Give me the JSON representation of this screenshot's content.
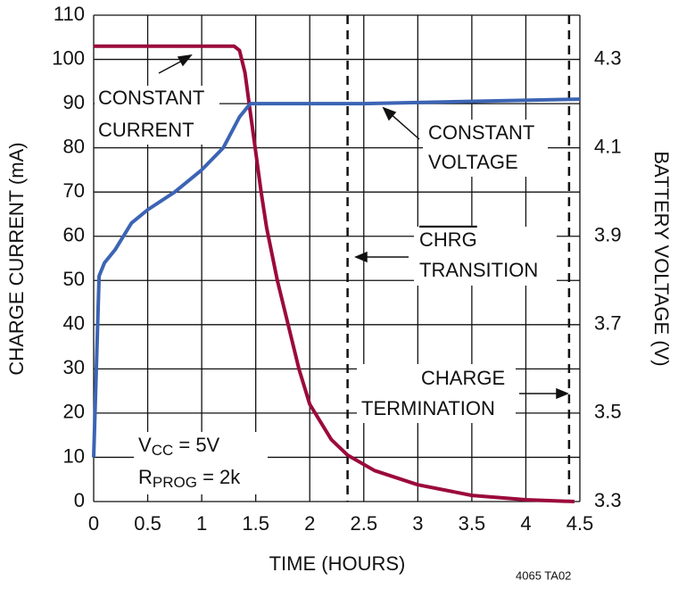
{
  "chart_data": {
    "type": "line",
    "xlabel": "TIME (HOURS)",
    "ylabel": "CHARGE CURRENT (mA)",
    "y2label": "BATTERY VOLTAGE (V)",
    "xlim": [
      0,
      4.5
    ],
    "xticks": [
      0,
      0.5,
      1,
      1.5,
      2,
      2.5,
      3,
      3.5,
      4,
      4.5
    ],
    "ylim": [
      0,
      110
    ],
    "yticks": [
      0,
      10,
      20,
      30,
      40,
      50,
      60,
      70,
      80,
      90,
      100,
      110
    ],
    "y2lim": [
      3.3,
      4.4
    ],
    "y2ticks": [
      3.3,
      3.5,
      3.7,
      3.9,
      4.1,
      4.3
    ],
    "grid": true,
    "series": [
      {
        "color": "#9b0a3c",
        "x": [
          0,
          0.5,
          1,
          1.3,
          1.35,
          1.4,
          1.45,
          1.5,
          1.55,
          1.6,
          1.7,
          1.8,
          1.9,
          2.0,
          2.2,
          2.35,
          2.6,
          3.0,
          3.5,
          4.0,
          4.45
        ],
        "values": [
          103,
          103,
          103,
          103,
          102,
          97,
          88,
          79,
          70,
          62,
          50,
          40,
          30,
          22,
          14,
          10.5,
          7,
          3.8,
          1.4,
          0.4,
          0
        ]
      },
      {
        "color": "#3c64b4",
        "axis": "y2",
        "x": [
          0,
          0.05,
          0.1,
          0.2,
          0.35,
          0.5,
          0.75,
          1.0,
          1.2,
          1.35,
          1.45,
          2.5,
          4.5
        ],
        "values": [
          3.4,
          3.81,
          3.84,
          3.87,
          3.93,
          3.96,
          4.0,
          4.05,
          4.1,
          4.17,
          4.2,
          4.2,
          4.21
        ]
      }
    ],
    "vlines": [
      2.35,
      4.4
    ],
    "annotations": {
      "constant_current": [
        "CONSTANT",
        "CURRENT"
      ],
      "constant_voltage": [
        "CONSTANT",
        "VOLTAGE"
      ],
      "chrg_transition": [
        "CHRG",
        "TRANSITION"
      ],
      "charge_termination": [
        "CHARGE",
        "TERMINATION"
      ],
      "vcc": [
        "V",
        "CC",
        " = 5V"
      ],
      "rprog": [
        "R",
        "PROG",
        " = 2k"
      ]
    },
    "figure_id": "4065 TA02"
  }
}
